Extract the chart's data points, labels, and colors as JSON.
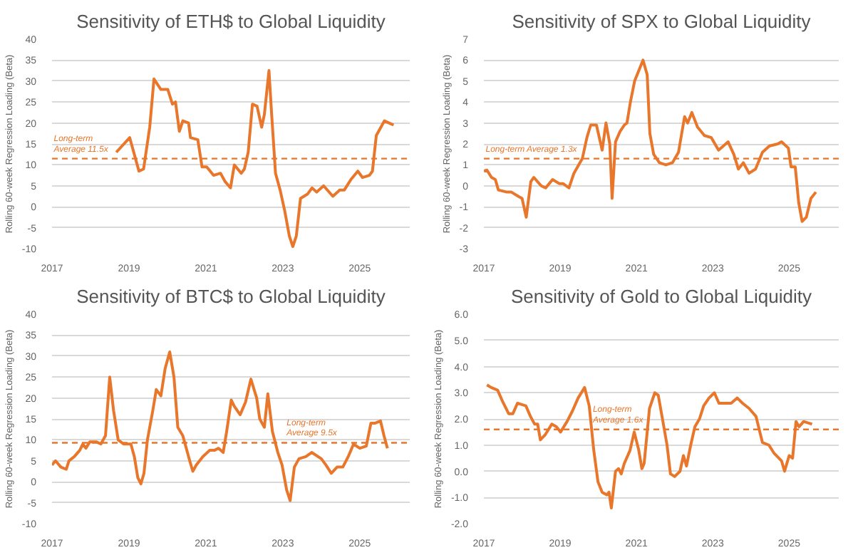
{
  "chart_data": [
    {
      "type": "line",
      "title": "Sensitivity of ETH$ to Global Liquidity",
      "ylabel": "Rolling 60-week Regression Loading (Beta)",
      "xlim": [
        2017,
        2026.3
      ],
      "xticks": [
        2017,
        2019,
        2021,
        2023,
        2025
      ],
      "ylim": [
        -10,
        40
      ],
      "yticks": [
        -10,
        -5,
        0,
        5,
        10,
        15,
        20,
        25,
        30,
        35,
        40
      ],
      "grid": "y",
      "x": [
        2018.67,
        2019.02,
        2019.26,
        2019.38,
        2019.54,
        2019.65,
        2019.83,
        2020.01,
        2020.13,
        2020.21,
        2020.31,
        2020.4,
        2020.55,
        2020.6,
        2020.79,
        2020.9,
        2021.02,
        2021.2,
        2021.38,
        2021.5,
        2021.64,
        2021.74,
        2021.92,
        2022.0,
        2022.1,
        2022.21,
        2022.33,
        2022.45,
        2022.52,
        2022.64,
        2022.71,
        2022.81,
        2022.93,
        2023.05,
        2023.17,
        2023.26,
        2023.35,
        2023.46,
        2023.64,
        2023.76,
        2023.88,
        2024.06,
        2024.3,
        2024.48,
        2024.6,
        2024.77,
        2024.95,
        2025.07,
        2025.25,
        2025.33,
        2025.43,
        2025.55,
        2025.64,
        2025.76,
        2025.88
      ],
      "series": [
        {
          "color": "#e8762b",
          "values": [
            13,
            16.5,
            8.5,
            9,
            19,
            30.5,
            28,
            28,
            24.5,
            25,
            18,
            20.5,
            20,
            16.5,
            16,
            9.5,
            9.5,
            7.5,
            8,
            6,
            4.5,
            10,
            8,
            9,
            13,
            24.5,
            24,
            19,
            22,
            32.5,
            22,
            8,
            4,
            -1,
            -7,
            -9.5,
            -7,
            2,
            3,
            4.5,
            3.5,
            5,
            2.5,
            4,
            4,
            6.5,
            8.5,
            7,
            7.5,
            8.5,
            17,
            19,
            20.5,
            20,
            19.5
          ]
        }
      ],
      "ref_lines": [
        {
          "axis": "y",
          "value": 11.5,
          "label": "Long-term Average 11.5x",
          "color": "#e8762b",
          "line_style": "dashed"
        }
      ]
    },
    {
      "type": "line",
      "title": "Sensitivity of SPX to Global Liquidity",
      "ylabel": "Rolling 60-week Regression Loading (Beta)",
      "xlim": [
        2017,
        2026.3
      ],
      "xticks": [
        2017,
        2019,
        2021,
        2023,
        2025
      ],
      "ylim": [
        -3,
        7
      ],
      "yticks": [
        -3,
        -2,
        -1,
        0,
        1,
        2,
        3,
        4,
        5,
        6,
        7
      ],
      "grid": "y",
      "x": [
        2017.0,
        2017.08,
        2017.2,
        2017.3,
        2017.38,
        2017.6,
        2017.72,
        2017.9,
        2018.0,
        2018.11,
        2018.23,
        2018.31,
        2018.5,
        2018.62,
        2018.8,
        2018.98,
        2019.08,
        2019.23,
        2019.36,
        2019.58,
        2019.7,
        2019.8,
        2019.95,
        2020.1,
        2020.2,
        2020.3,
        2020.36,
        2020.45,
        2020.57,
        2020.68,
        2020.75,
        2020.84,
        2020.95,
        2021.17,
        2021.28,
        2021.35,
        2021.45,
        2021.6,
        2021.77,
        2021.94,
        2022.1,
        2022.26,
        2022.34,
        2022.45,
        2022.6,
        2022.78,
        2022.96,
        2023.15,
        2023.4,
        2023.55,
        2023.67,
        2023.8,
        2023.95,
        2024.12,
        2024.3,
        2024.48,
        2024.7,
        2024.8,
        2024.98,
        2025.05,
        2025.16,
        2025.25,
        2025.34,
        2025.45,
        2025.57,
        2025.7
      ],
      "series": [
        {
          "color": "#e8762b",
          "values": [
            0.7,
            0.75,
            0.4,
            0.3,
            -0.2,
            -0.3,
            -0.3,
            -0.5,
            -0.6,
            -1.5,
            0.2,
            0.4,
            0,
            -0.1,
            0.3,
            0.1,
            0.1,
            -0.1,
            0.6,
            1.3,
            2.3,
            2.9,
            2.9,
            1.7,
            3.0,
            2.0,
            -0.6,
            2.1,
            2.6,
            2.9,
            3.0,
            4.0,
            5.0,
            6.0,
            5.3,
            2.5,
            1.5,
            1.1,
            1.0,
            1.1,
            1.6,
            3.3,
            3.0,
            3.5,
            2.8,
            2.4,
            2.3,
            1.7,
            2.1,
            1.5,
            0.8,
            1.1,
            0.6,
            0.8,
            1.6,
            1.9,
            2.0,
            2.1,
            1.8,
            0.9,
            0.9,
            -0.8,
            -1.7,
            -1.5,
            -0.6,
            -0.3
          ]
        }
      ],
      "ref_lines": [
        {
          "axis": "y",
          "value": 1.3,
          "label": "Long-term Average 1.3x",
          "color": "#e8762b",
          "line_style": "dashed"
        }
      ]
    },
    {
      "type": "line",
      "title": "Sensitivity of BTC$ to Global Liquidity",
      "ylabel": "Rolling 60-week Regression Loading (Beta)",
      "xlim": [
        2017,
        2026.3
      ],
      "xticks": [
        2017,
        2019,
        2021,
        2023,
        2025
      ],
      "ylim": [
        -10,
        40
      ],
      "yticks": [
        -10,
        -5,
        0,
        5,
        10,
        15,
        20,
        25,
        30,
        35,
        40
      ],
      "grid": "y",
      "x": [
        2017.0,
        2017.09,
        2017.23,
        2017.37,
        2017.44,
        2017.58,
        2017.72,
        2017.8,
        2017.88,
        2017.98,
        2018.16,
        2018.27,
        2018.39,
        2018.5,
        2018.6,
        2018.72,
        2018.86,
        2019.05,
        2019.14,
        2019.23,
        2019.31,
        2019.39,
        2019.48,
        2019.62,
        2019.71,
        2019.83,
        2019.94,
        2020.06,
        2020.17,
        2020.27,
        2020.4,
        2020.58,
        2020.66,
        2020.75,
        2020.92,
        2021.1,
        2021.22,
        2021.33,
        2021.45,
        2021.54,
        2021.66,
        2021.74,
        2021.89,
        2022.03,
        2022.17,
        2022.32,
        2022.4,
        2022.52,
        2022.61,
        2022.73,
        2022.87,
        2022.98,
        2023.1,
        2023.19,
        2023.3,
        2023.42,
        2023.6,
        2023.75,
        2024.0,
        2024.12,
        2024.26,
        2024.41,
        2024.56,
        2024.7,
        2024.84,
        2025.0,
        2025.17,
        2025.29,
        2025.4,
        2025.54,
        2025.63,
        2025.72
      ],
      "series": [
        {
          "color": "#e8762b",
          "values": [
            4,
            5,
            3.5,
            3,
            5,
            6,
            7.5,
            9,
            8,
            9.5,
            9.5,
            9,
            11,
            25,
            17,
            10,
            9,
            9,
            6,
            1,
            -0.5,
            2,
            10,
            17,
            22,
            20.5,
            27,
            31,
            25,
            13,
            11,
            5,
            2.5,
            4,
            6,
            7.5,
            7.5,
            8,
            7,
            12,
            19.5,
            18,
            16,
            19,
            24.5,
            20,
            15,
            13,
            21,
            12,
            7,
            4,
            -2,
            -4.5,
            3.5,
            5.5,
            6,
            7,
            5.5,
            4,
            2,
            3.5,
            3.5,
            6,
            9,
            8,
            8.5,
            14,
            14,
            14.5,
            11,
            8
          ]
        }
      ],
      "ref_lines": [
        {
          "axis": "y",
          "value": 9.3,
          "label": "Long-term Average 9.5x",
          "color": "#e8762b",
          "line_style": "dashed"
        }
      ]
    },
    {
      "type": "line",
      "title": "Sensitivity of Gold to Global Liquidity",
      "ylabel": "Rolling 60-week Regression Loading (Beta)",
      "xlim": [
        2017,
        2026.3
      ],
      "xticks": [
        2017,
        2019,
        2021,
        2023,
        2025
      ],
      "ylim": [
        -2,
        6
      ],
      "yticks": [
        {
          "value": -2,
          "label": "-2.0"
        },
        {
          "value": -1,
          "label": "-1.0"
        },
        {
          "value": 0,
          "label": "0.0"
        },
        {
          "value": 1,
          "label": "1.0"
        },
        {
          "value": 2,
          "label": "2.0"
        },
        {
          "value": 3,
          "label": "3.0"
        },
        {
          "value": 4,
          "label": "4.0"
        },
        {
          "value": 5,
          "label": "5.0"
        },
        {
          "value": 6,
          "label": "6.0"
        }
      ],
      "grid": "y",
      "x": [
        2017.08,
        2017.19,
        2017.36,
        2017.48,
        2017.65,
        2017.76,
        2017.88,
        2018.1,
        2018.22,
        2018.33,
        2018.41,
        2018.48,
        2018.61,
        2018.78,
        2018.9,
        2019.01,
        2019.18,
        2019.32,
        2019.47,
        2019.64,
        2019.76,
        2019.88,
        2019.99,
        2020.1,
        2020.22,
        2020.28,
        2020.34,
        2020.45,
        2020.53,
        2020.6,
        2020.68,
        2020.83,
        2020.94,
        2021.06,
        2021.14,
        2021.2,
        2021.34,
        2021.48,
        2021.57,
        2021.68,
        2021.8,
        2021.89,
        2022.0,
        2022.14,
        2022.23,
        2022.31,
        2022.42,
        2022.53,
        2022.65,
        2022.76,
        2022.9,
        2023.04,
        2023.16,
        2023.33,
        2023.48,
        2023.64,
        2023.78,
        2023.95,
        2024.13,
        2024.3,
        2024.47,
        2024.6,
        2024.8,
        2024.88,
        2025.0,
        2025.09,
        2025.18,
        2025.26,
        2025.38,
        2025.6
      ],
      "series": [
        {
          "color": "#e8762b",
          "values": [
            3.3,
            3.2,
            3.1,
            2.7,
            2.2,
            2.2,
            2.6,
            2.5,
            2.1,
            1.8,
            1.8,
            1.2,
            1.4,
            1.8,
            1.7,
            1.5,
            1.9,
            2.3,
            2.8,
            3.2,
            2.5,
            0.8,
            -0.4,
            -0.8,
            -0.9,
            -0.8,
            -1.4,
            0.0,
            0.1,
            -0.1,
            0.3,
            0.8,
            1.5,
            0.8,
            0.1,
            0.3,
            2.4,
            3.0,
            2.9,
            2.0,
            1.0,
            -0.1,
            -0.2,
            0.0,
            0.6,
            0.2,
            1.0,
            1.7,
            2.0,
            2.5,
            2.8,
            3.0,
            2.6,
            2.6,
            2.6,
            2.8,
            2.6,
            2.4,
            2.1,
            1.1,
            1.0,
            0.7,
            0.4,
            0.0,
            0.6,
            0.5,
            1.9,
            1.7,
            1.9,
            1.8
          ]
        }
      ],
      "ref_lines": [
        {
          "axis": "y",
          "value": 1.6,
          "label": "Long-term Average 1.6x",
          "color": "#e8762b",
          "line_style": "dashed"
        }
      ]
    }
  ]
}
